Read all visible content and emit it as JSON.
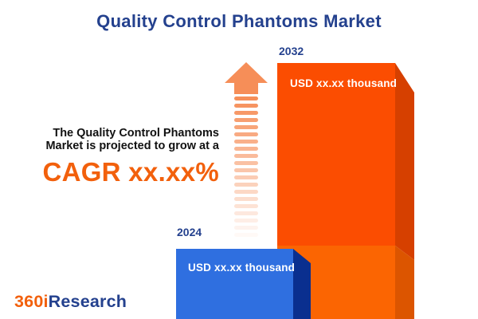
{
  "title": "Quality Control Phantoms Market",
  "description": {
    "line1": "The Quality Control Phantoms",
    "line2": "Market is projected to grow at a",
    "cagr": "CAGR xx.xx%"
  },
  "chart_data": {
    "type": "bar",
    "title": "Quality Control Phantoms Market",
    "categories": [
      "2024",
      "2032"
    ],
    "values": [
      null,
      null
    ],
    "value_labels": [
      "USD xx.xx thousand",
      "USD xx.xx thousand"
    ],
    "annotation": "CAGR xx.xx%",
    "legend_position": "none",
    "grid": false,
    "bar_colors": {
      "front_2024": "#2F6FE0",
      "side_2024": "#0A2F8F",
      "front_2032_upper": "#FB4D01",
      "front_2032_lower": "#FB6502",
      "side_2032_upper": "#D64000",
      "side_2032_lower": "#DC5500"
    },
    "arrow_color": "#F68E58"
  },
  "logo": {
    "part1": "360i",
    "part2": "Research"
  },
  "colors": {
    "background": "#FFFFFF",
    "title_text": "#24418E",
    "year_label_text": "#24418E",
    "body_text": "#111111",
    "cagr_text": "#F2600C",
    "value_text": "#FFFFFF",
    "logo_orange": "#F2600C",
    "logo_blue": "#24418E"
  }
}
